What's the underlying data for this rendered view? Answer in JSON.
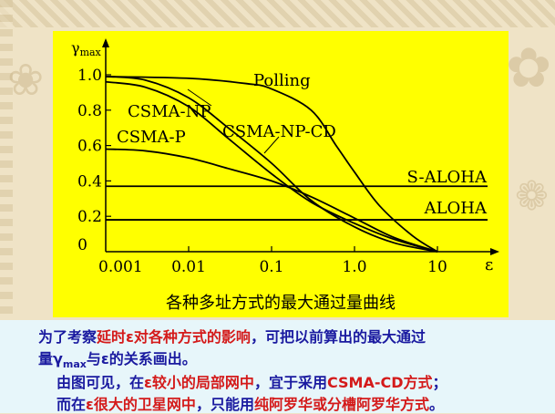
{
  "chart_data": {
    "type": "line",
    "title": "各种多址方式的最大通过量曲线",
    "ylabel": "γmax",
    "xlabel": "ε",
    "xscale": "log",
    "xlim": [
      0.001,
      10
    ],
    "ylim": [
      0,
      1.0
    ],
    "x_tick_labels": [
      "0.001",
      "0.01",
      "0.1",
      "1.0",
      "10"
    ],
    "y_tick_labels": [
      "0",
      "0.2",
      "0.4",
      "0.6",
      "0.8",
      "1.0"
    ],
    "x_ticks": [
      0.001,
      0.01,
      0.1,
      1,
      10
    ],
    "y_ticks": [
      0,
      0.2,
      0.4,
      0.6,
      0.8,
      1.0
    ],
    "series": [
      {
        "name": "Polling",
        "x": [
          0.001,
          0.01,
          0.05,
          0.1,
          0.3,
          0.6,
          1.0,
          2.0,
          5.0,
          10
        ],
        "y": [
          0.99,
          0.98,
          0.95,
          0.92,
          0.8,
          0.6,
          0.45,
          0.26,
          0.09,
          0.0
        ]
      },
      {
        "name": "CSMA-NP",
        "x": [
          0.001,
          0.003,
          0.01,
          0.03,
          0.1,
          0.3,
          1.0,
          3.0,
          10
        ],
        "y": [
          0.96,
          0.93,
          0.82,
          0.64,
          0.44,
          0.28,
          0.16,
          0.07,
          0.0
        ]
      },
      {
        "name": "CSMA-P",
        "x": [
          0.001,
          0.003,
          0.01,
          0.03,
          0.1,
          0.3,
          1.0,
          3.0,
          10
        ],
        "y": [
          0.58,
          0.57,
          0.53,
          0.47,
          0.4,
          0.31,
          0.19,
          0.08,
          0.0
        ]
      },
      {
        "name": "CSMA-NP-CD",
        "x": [
          0.001,
          0.003,
          0.01,
          0.03,
          0.1,
          0.3,
          1.0,
          3.0,
          10
        ],
        "y": [
          0.99,
          0.97,
          0.87,
          0.7,
          0.5,
          0.29,
          0.14,
          0.05,
          0.0
        ]
      },
      {
        "name": "S-ALOHA",
        "x": [
          0.001,
          10
        ],
        "y": [
          0.37,
          0.37
        ]
      },
      {
        "name": "ALOHA",
        "x": [
          0.001,
          10
        ],
        "y": [
          0.18,
          0.18
        ]
      }
    ]
  },
  "text": {
    "l1_a": "为了考察",
    "l1_b": "延时ε对各种方式的影响",
    "l1_c": "，可把以前算出的最大通过",
    "l2_a": "量γ",
    "l2_sub": "max",
    "l2_b": "与ε的关系画出。",
    "l3_a": "由图可见，在",
    "l3_b": "ε较小的局部网中",
    "l3_c": "，宜于采用",
    "l3_d": "CSMA-CD方式",
    "l3_e": "；",
    "l4_a": "而在",
    "l4_b": "ε很大的卫星网中",
    "l4_c": "，只能用",
    "l4_d": "纯阿罗华或分槽阿罗华方式",
    "l4_e": "。"
  },
  "colors": {
    "panel": "#ffff00",
    "text_blue": "#1a1aa0",
    "text_red": "#d41a1a"
  }
}
